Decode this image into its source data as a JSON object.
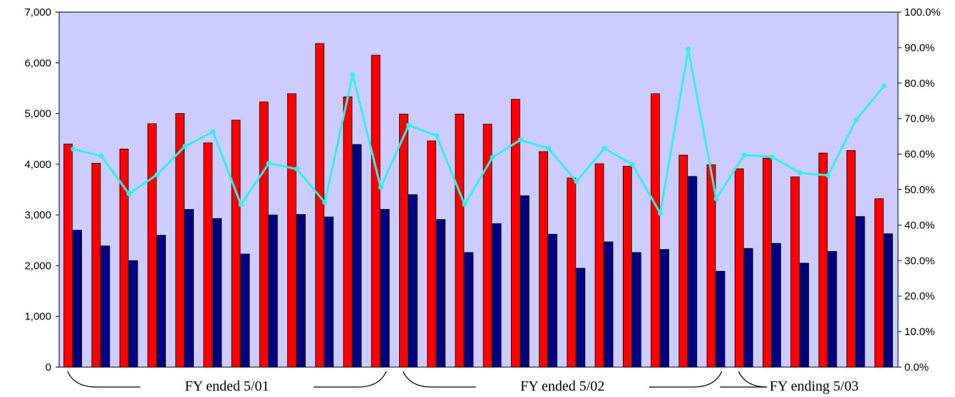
{
  "chart_data": {
    "type": "bar",
    "grid": false,
    "plot_background": "#ccccff",
    "y_left": {
      "ylim": [
        0,
        7000
      ],
      "ticks": [
        "0",
        "1,000",
        "2,000",
        "3,000",
        "4,000",
        "5,000",
        "6,000",
        "7,000"
      ]
    },
    "y_right": {
      "ylim": [
        0,
        100
      ],
      "ticks": [
        "0.0%",
        "10.0%",
        "20.0%",
        "30.0%",
        "40.0%",
        "50.0%",
        "60.0%",
        "70.0%",
        "80.0%",
        "90.0%",
        "100.0%"
      ]
    },
    "series": [
      {
        "color": "#ff0000",
        "axis": "left",
        "kind": "bar",
        "values": [
          4400,
          4020,
          4300,
          4800,
          5000,
          4420,
          4870,
          5230,
          5390,
          6380,
          5330,
          6150,
          4990,
          4460,
          4990,
          4790,
          5280,
          4250,
          3730,
          4010,
          3960,
          5390,
          4180,
          3990,
          3910,
          4120,
          3750,
          4220,
          4270,
          3320
        ]
      },
      {
        "color": "#000080",
        "axis": "left",
        "kind": "bar",
        "values": [
          2700,
          2390,
          2100,
          2600,
          3110,
          2930,
          2230,
          3000,
          3010,
          2960,
          4390,
          3110,
          3400,
          2910,
          2260,
          2830,
          3380,
          2620,
          1950,
          2470,
          2260,
          2320,
          3760,
          1890,
          2340,
          2440,
          2050,
          2280,
          2970,
          2630
        ]
      },
      {
        "color": "#33eeee",
        "axis": "right",
        "kind": "line",
        "values": [
          61.4,
          59.5,
          48.8,
          54.2,
          62.2,
          66.3,
          45.8,
          57.4,
          55.8,
          46.4,
          82.4,
          50.6,
          68.1,
          65.2,
          45.8,
          59.1,
          64.0,
          61.6,
          52.3,
          61.6,
          57.1,
          43.3,
          89.5,
          47.4,
          59.8,
          59.2,
          54.7,
          54.0,
          69.6,
          79.2
        ]
      }
    ],
    "groups": [
      {
        "label": "FY ended 5/01",
        "start": 0,
        "end": 11
      },
      {
        "label": "FY ended 5/02",
        "start": 12,
        "end": 23
      },
      {
        "label": "FY ending  5/03",
        "start": 24,
        "end": 29
      }
    ]
  }
}
